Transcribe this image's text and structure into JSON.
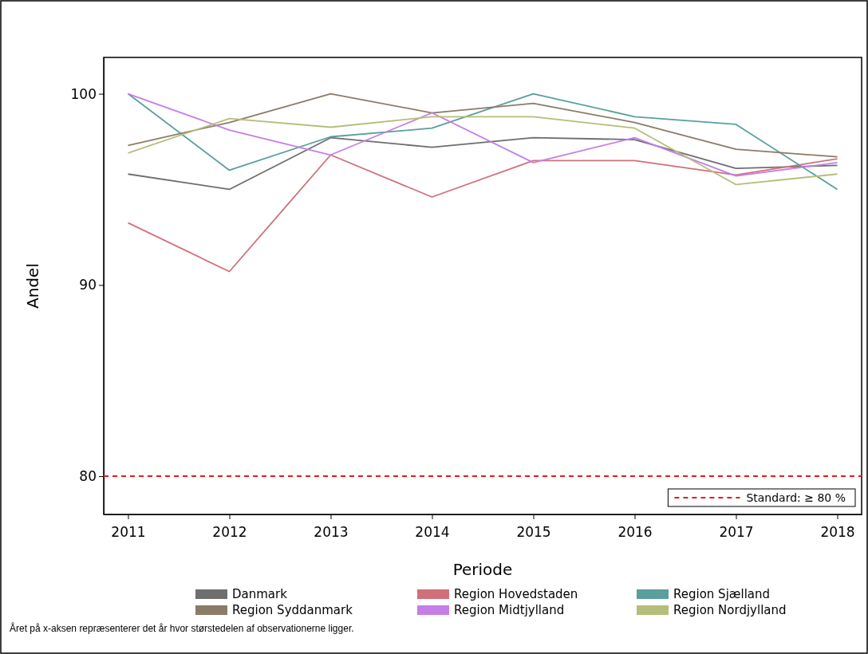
{
  "chart_data": {
    "type": "line",
    "xlabel": "Periode",
    "ylabel": "Andel",
    "x": [
      2011,
      2012,
      2013,
      2014,
      2015,
      2016,
      2017,
      2018
    ],
    "xlim": [
      2010.76,
      2018.24
    ],
    "xticks": [
      2011,
      2012,
      2013,
      2014,
      2015,
      2016,
      2017,
      2018
    ],
    "ylim": [
      78.0,
      101.9
    ],
    "yticks": [
      80,
      90,
      100
    ],
    "series": [
      {
        "name": "Danmark",
        "color": "#6e6e6e",
        "values": [
          95.8,
          95.0,
          97.7,
          97.2,
          97.7,
          97.6,
          96.1,
          96.25
        ]
      },
      {
        "name": "Region Hovedstaden",
        "color": "#d0707a",
        "values": [
          93.25,
          90.7,
          96.8,
          94.6,
          96.5,
          96.5,
          95.75,
          96.6
        ]
      },
      {
        "name": "Region Sjælland",
        "color": "#5a9e9e",
        "values": [
          100,
          96.0,
          97.75,
          98.2,
          100,
          98.8,
          98.4,
          95.0
        ]
      },
      {
        "name": "Region Syddanmark",
        "color": "#8c7b68",
        "values": [
          97.3,
          98.5,
          100,
          99.0,
          99.5,
          98.5,
          97.1,
          96.7
        ]
      },
      {
        "name": "Region Midtjylland",
        "color": "#c57ee6",
        "values": [
          100,
          98.1,
          96.8,
          99.0,
          96.4,
          97.7,
          95.7,
          96.4
        ]
      },
      {
        "name": "Region Nordjylland",
        "color": "#b5bd7a",
        "values": [
          96.9,
          98.7,
          98.25,
          98.8,
          98.8,
          98.2,
          95.25,
          95.8
        ]
      }
    ],
    "ref_lines": [
      {
        "axis": "y",
        "value": 80,
        "label": "Standard: ≥ 80 %",
        "color": "#e8191c",
        "line_style": "dashed"
      }
    ],
    "legend": "bottom",
    "grid": false,
    "marker": "none",
    "line_style": "solid",
    "annotations": [
      "Året på x-aksen repræsenterer det år hvor størstedelen af observationerne ligger."
    ]
  }
}
